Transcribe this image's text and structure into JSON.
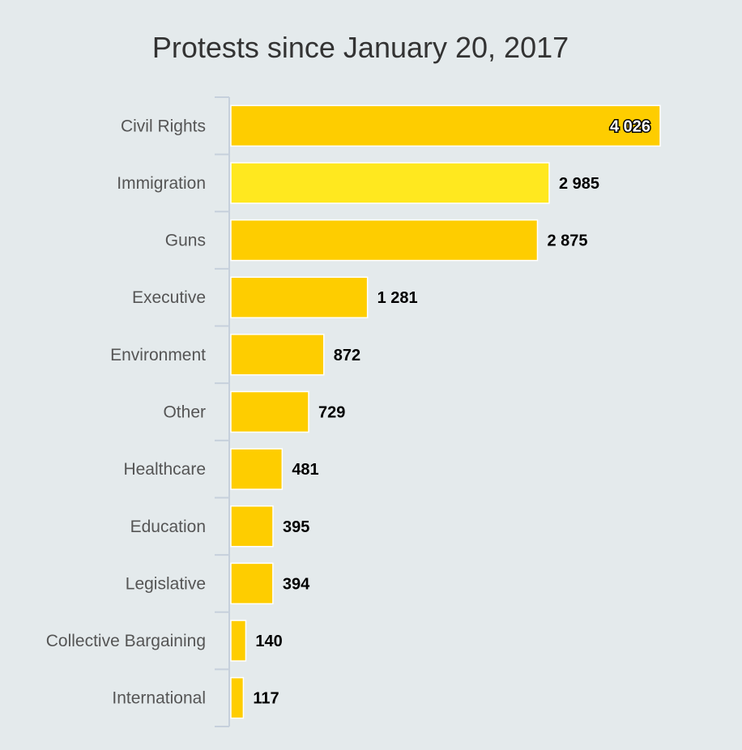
{
  "chart_data": {
    "type": "bar",
    "orientation": "horizontal",
    "title": "Protests since January 20, 2017",
    "categories": [
      "Civil Rights",
      "Immigration",
      "Guns",
      "Executive",
      "Environment",
      "Other",
      "Healthcare",
      "Education",
      "Legislative",
      "Collective Bargaining",
      "International"
    ],
    "values": [
      4026,
      2985,
      2875,
      1281,
      872,
      729,
      481,
      395,
      394,
      140,
      117
    ],
    "value_labels": [
      "4 026",
      "2 985",
      "2 875",
      "1 281",
      "872",
      "729",
      "481",
      "395",
      "394",
      "140",
      "117"
    ],
    "xlim": [
      0,
      4026
    ],
    "grid": false,
    "legend": "none",
    "colors": {
      "bar": "#fecd00",
      "bar_highlight": "#ffe81f",
      "bar_border": "#ffffff",
      "axis": "#c6d0dc",
      "background": "#e4eaec"
    },
    "highlight_index": 1
  }
}
